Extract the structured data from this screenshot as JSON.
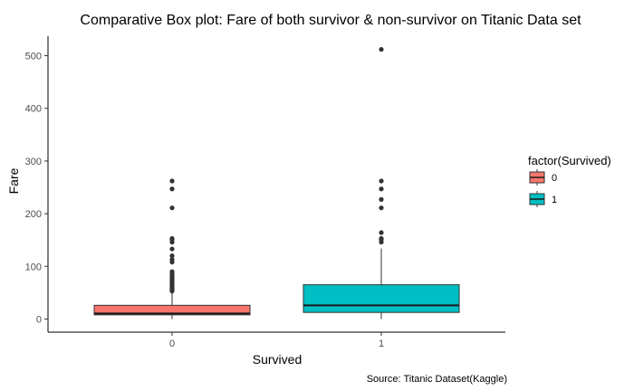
{
  "chart_data": {
    "type": "box",
    "title": "Comparative Box plot: Fare of both survivor & non-survivor on Titanic Data set",
    "xlabel": "Survived",
    "ylabel": "Fare",
    "caption": "Source: Titanic Dataset(Kaggle)",
    "categories": [
      "0",
      "1"
    ],
    "ylim": [
      -25,
      537
    ],
    "yticks": [
      0,
      100,
      200,
      300,
      400,
      500
    ],
    "legend": {
      "title": "factor(Survived)",
      "position": "right",
      "entries": [
        {
          "label": "0",
          "color": "#F8766D"
        },
        {
          "label": "1",
          "color": "#00BFC4"
        }
      ]
    },
    "grid": false,
    "boxes": [
      {
        "category": "0",
        "color": "#F8766D",
        "whisker_low": 0,
        "q1": 7.9,
        "median": 10.5,
        "q3": 26,
        "whisker_high": 52,
        "outliers": [
          53,
          55,
          56,
          57,
          59,
          61,
          63,
          65,
          67,
          69,
          71,
          73,
          76,
          78,
          80,
          83,
          86,
          90,
          108,
          113,
          120,
          133,
          146,
          151,
          153,
          211,
          247,
          262
        ]
      },
      {
        "category": "1",
        "color": "#00BFC4",
        "whisker_low": 0,
        "q1": 12.5,
        "median": 26,
        "q3": 65,
        "whisker_high": 134,
        "outliers": [
          146,
          151,
          153,
          164,
          211,
          227,
          247,
          262,
          512
        ]
      }
    ]
  }
}
